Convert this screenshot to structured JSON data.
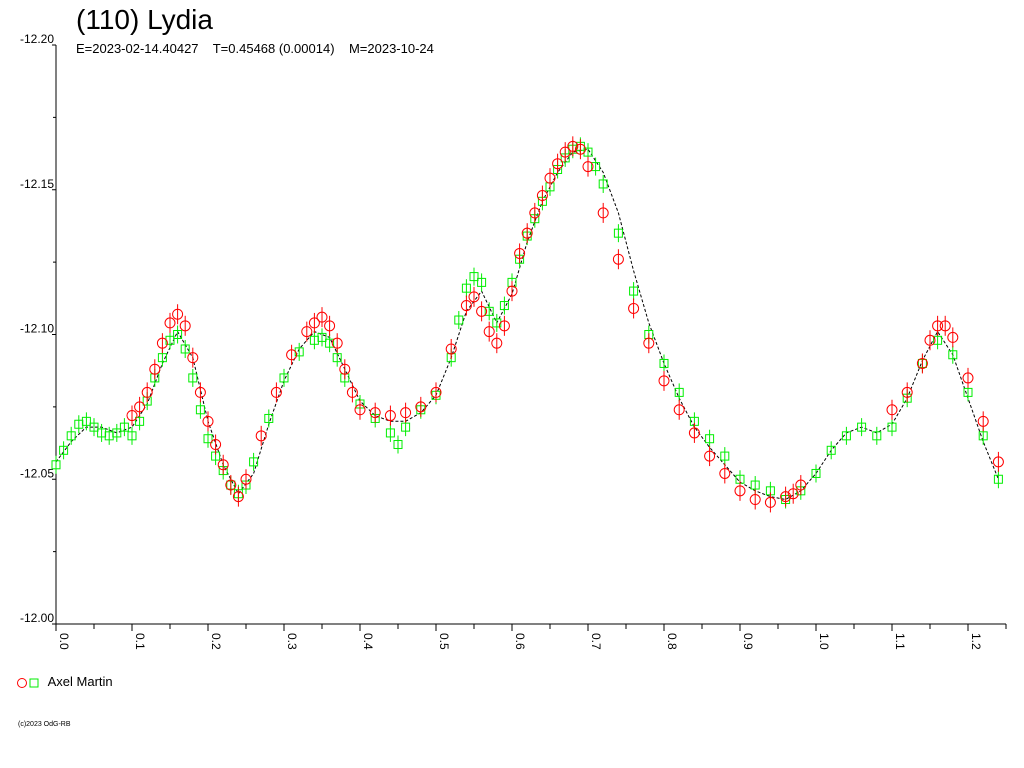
{
  "header": {
    "title": "(110) Lydia",
    "subtitle": "E=2023-02-14.40427    T=0.45468 (0.00014)    M=2023-10-24"
  },
  "legend": {
    "label": "Axel Martin"
  },
  "credit": "(c)2023 OdG-RB",
  "colors": {
    "series1": "#ff0000",
    "series2": "#00ee00",
    "model": "#000000",
    "axis": "#000000"
  },
  "chart_data": {
    "type": "scatter",
    "title": "(110) Lydia",
    "xlabel": "",
    "ylabel": "",
    "xlim": [
      0.0,
      1.25
    ],
    "ylim": [
      -12.2,
      -12.0
    ],
    "y_axis_inverted": true,
    "grid": false,
    "legend_position": "bottom-left",
    "x_ticks": [
      "0.0",
      "0.1",
      "0.2",
      "0.3",
      "0.4",
      "0.5",
      "0.6",
      "0.7",
      "0.8",
      "0.9",
      "1.0",
      "1.1",
      "1.2"
    ],
    "y_ticks": [
      "-12.20",
      "-12.15",
      "-12.10",
      "-12.05",
      "-12.00"
    ],
    "series": [
      {
        "name": "Axel Martin",
        "marker": "circle",
        "color": "#ff0000",
        "x": [
          0.1,
          0.11,
          0.12,
          0.13,
          0.14,
          0.15,
          0.16,
          0.17,
          0.18,
          0.19,
          0.2,
          0.21,
          0.22,
          0.23,
          0.24,
          0.25,
          0.27,
          0.29,
          0.31,
          0.33,
          0.34,
          0.35,
          0.36,
          0.37,
          0.38,
          0.39,
          0.4,
          0.42,
          0.44,
          0.46,
          0.48,
          0.5,
          0.52,
          0.54,
          0.55,
          0.56,
          0.57,
          0.58,
          0.59,
          0.6,
          0.61,
          0.62,
          0.63,
          0.64,
          0.65,
          0.66,
          0.67,
          0.68,
          0.69,
          0.7,
          0.72,
          0.74,
          0.76,
          0.78,
          0.8,
          0.82,
          0.84,
          0.86,
          0.88,
          0.9,
          0.92,
          0.94,
          0.96,
          0.97,
          0.98,
          1.1,
          1.12,
          1.14,
          1.15,
          1.16,
          1.17,
          1.18,
          1.2,
          1.22,
          1.24
        ],
        "y": [
          -12.072,
          -12.075,
          -12.08,
          -12.088,
          -12.097,
          -12.104,
          -12.107,
          -12.103,
          -12.092,
          -12.08,
          -12.07,
          -12.062,
          -12.055,
          -12.048,
          -12.044,
          -12.05,
          -12.065,
          -12.08,
          -12.093,
          -12.101,
          -12.104,
          -12.106,
          -12.103,
          -12.097,
          -12.088,
          -12.08,
          -12.074,
          -12.073,
          -12.072,
          -12.073,
          -12.075,
          -12.08,
          -12.095,
          -12.11,
          -12.113,
          -12.108,
          -12.101,
          -12.097,
          -12.103,
          -12.115,
          -12.128,
          -12.135,
          -12.142,
          -12.148,
          -12.154,
          -12.159,
          -12.163,
          -12.165,
          -12.164,
          -12.158,
          -12.142,
          -12.126,
          -12.109,
          -12.097,
          -12.084,
          -12.074,
          -12.066,
          -12.058,
          -12.052,
          -12.046,
          -12.043,
          -12.042,
          -12.044,
          -12.045,
          -12.048,
          -12.074,
          -12.08,
          -12.09,
          -12.098,
          -12.103,
          -12.103,
          -12.099,
          -12.085,
          -12.07,
          -12.056
        ]
      },
      {
        "name": "Axel Martin",
        "marker": "square",
        "color": "#00ee00",
        "x": [
          0.0,
          0.01,
          0.02,
          0.03,
          0.04,
          0.05,
          0.06,
          0.07,
          0.08,
          0.09,
          0.1,
          0.11,
          0.12,
          0.13,
          0.14,
          0.15,
          0.16,
          0.17,
          0.18,
          0.19,
          0.2,
          0.21,
          0.22,
          0.23,
          0.24,
          0.25,
          0.26,
          0.28,
          0.3,
          0.32,
          0.34,
          0.35,
          0.36,
          0.37,
          0.38,
          0.4,
          0.42,
          0.44,
          0.45,
          0.46,
          0.48,
          0.5,
          0.52,
          0.53,
          0.54,
          0.55,
          0.56,
          0.57,
          0.58,
          0.59,
          0.6,
          0.61,
          0.62,
          0.63,
          0.64,
          0.65,
          0.66,
          0.67,
          0.68,
          0.69,
          0.7,
          0.71,
          0.72,
          0.74,
          0.76,
          0.78,
          0.8,
          0.82,
          0.84,
          0.86,
          0.88,
          0.9,
          0.92,
          0.94,
          0.96,
          0.98,
          1.0,
          1.02,
          1.04,
          1.06,
          1.08,
          1.1,
          1.12,
          1.14,
          1.16,
          1.18,
          1.2,
          1.22,
          1.24
        ],
        "y": [
          -12.055,
          -12.06,
          -12.065,
          -12.069,
          -12.07,
          -12.068,
          -12.066,
          -12.065,
          -12.066,
          -12.068,
          -12.065,
          -12.07,
          -12.077,
          -12.085,
          -12.092,
          -12.098,
          -12.1,
          -12.095,
          -12.085,
          -12.074,
          -12.064,
          -12.058,
          -12.053,
          -12.048,
          -12.045,
          -12.048,
          -12.056,
          -12.071,
          -12.085,
          -12.094,
          -12.098,
          -12.099,
          -12.097,
          -12.092,
          -12.085,
          -12.076,
          -12.071,
          -12.066,
          -12.062,
          -12.068,
          -12.074,
          -12.079,
          -12.092,
          -12.105,
          -12.116,
          -12.12,
          -12.118,
          -12.108,
          -12.104,
          -12.11,
          -12.118,
          -12.126,
          -12.134,
          -12.14,
          -12.146,
          -12.151,
          -12.157,
          -12.161,
          -12.164,
          -12.165,
          -12.163,
          -12.158,
          -12.152,
          -12.135,
          -12.115,
          -12.1,
          -12.09,
          -12.08,
          -12.07,
          -12.064,
          -12.058,
          -12.05,
          -12.048,
          -12.046,
          -12.043,
          -12.046,
          -12.052,
          -12.06,
          -12.065,
          -12.068,
          -12.065,
          -12.068,
          -12.078,
          -12.09,
          -12.098,
          -12.093,
          -12.08,
          -12.065,
          -12.05
        ]
      },
      {
        "name": "",
        "marker": "none",
        "color": "#000000",
        "x": [
          0.0,
          0.02,
          0.04,
          0.06,
          0.08,
          0.1,
          0.12,
          0.14,
          0.16,
          0.18,
          0.2,
          0.22,
          0.24,
          0.26,
          0.28,
          0.3,
          0.32,
          0.34,
          0.36,
          0.38,
          0.4,
          0.42,
          0.44,
          0.46,
          0.48,
          0.5,
          0.52,
          0.54,
          0.56,
          0.58,
          0.6,
          0.62,
          0.64,
          0.66,
          0.68,
          0.7,
          0.72,
          0.74,
          0.76,
          0.78,
          0.8,
          0.82,
          0.84,
          0.86,
          0.88,
          0.9,
          0.92,
          0.94,
          0.96,
          0.98,
          1.0,
          1.02,
          1.04,
          1.06,
          1.08,
          1.1,
          1.12,
          1.14,
          1.16,
          1.18,
          1.2,
          1.22,
          1.24
        ],
        "y": [
          -12.056,
          -12.063,
          -12.068,
          -12.068,
          -12.066,
          -12.068,
          -12.076,
          -12.09,
          -12.101,
          -12.092,
          -12.07,
          -12.055,
          -12.045,
          -12.052,
          -12.069,
          -12.084,
          -12.095,
          -12.101,
          -12.099,
          -12.088,
          -12.077,
          -12.072,
          -12.07,
          -12.07,
          -12.073,
          -12.079,
          -12.092,
          -12.108,
          -12.115,
          -12.104,
          -12.114,
          -12.132,
          -12.146,
          -12.156,
          -12.163,
          -12.164,
          -12.156,
          -12.142,
          -12.122,
          -12.104,
          -12.09,
          -12.078,
          -12.068,
          -12.061,
          -12.055,
          -12.049,
          -12.046,
          -12.044,
          -12.043,
          -12.046,
          -12.052,
          -12.06,
          -12.066,
          -12.068,
          -12.066,
          -12.069,
          -12.078,
          -12.091,
          -12.101,
          -12.093,
          -12.078,
          -12.063,
          -12.05
        ]
      }
    ]
  }
}
